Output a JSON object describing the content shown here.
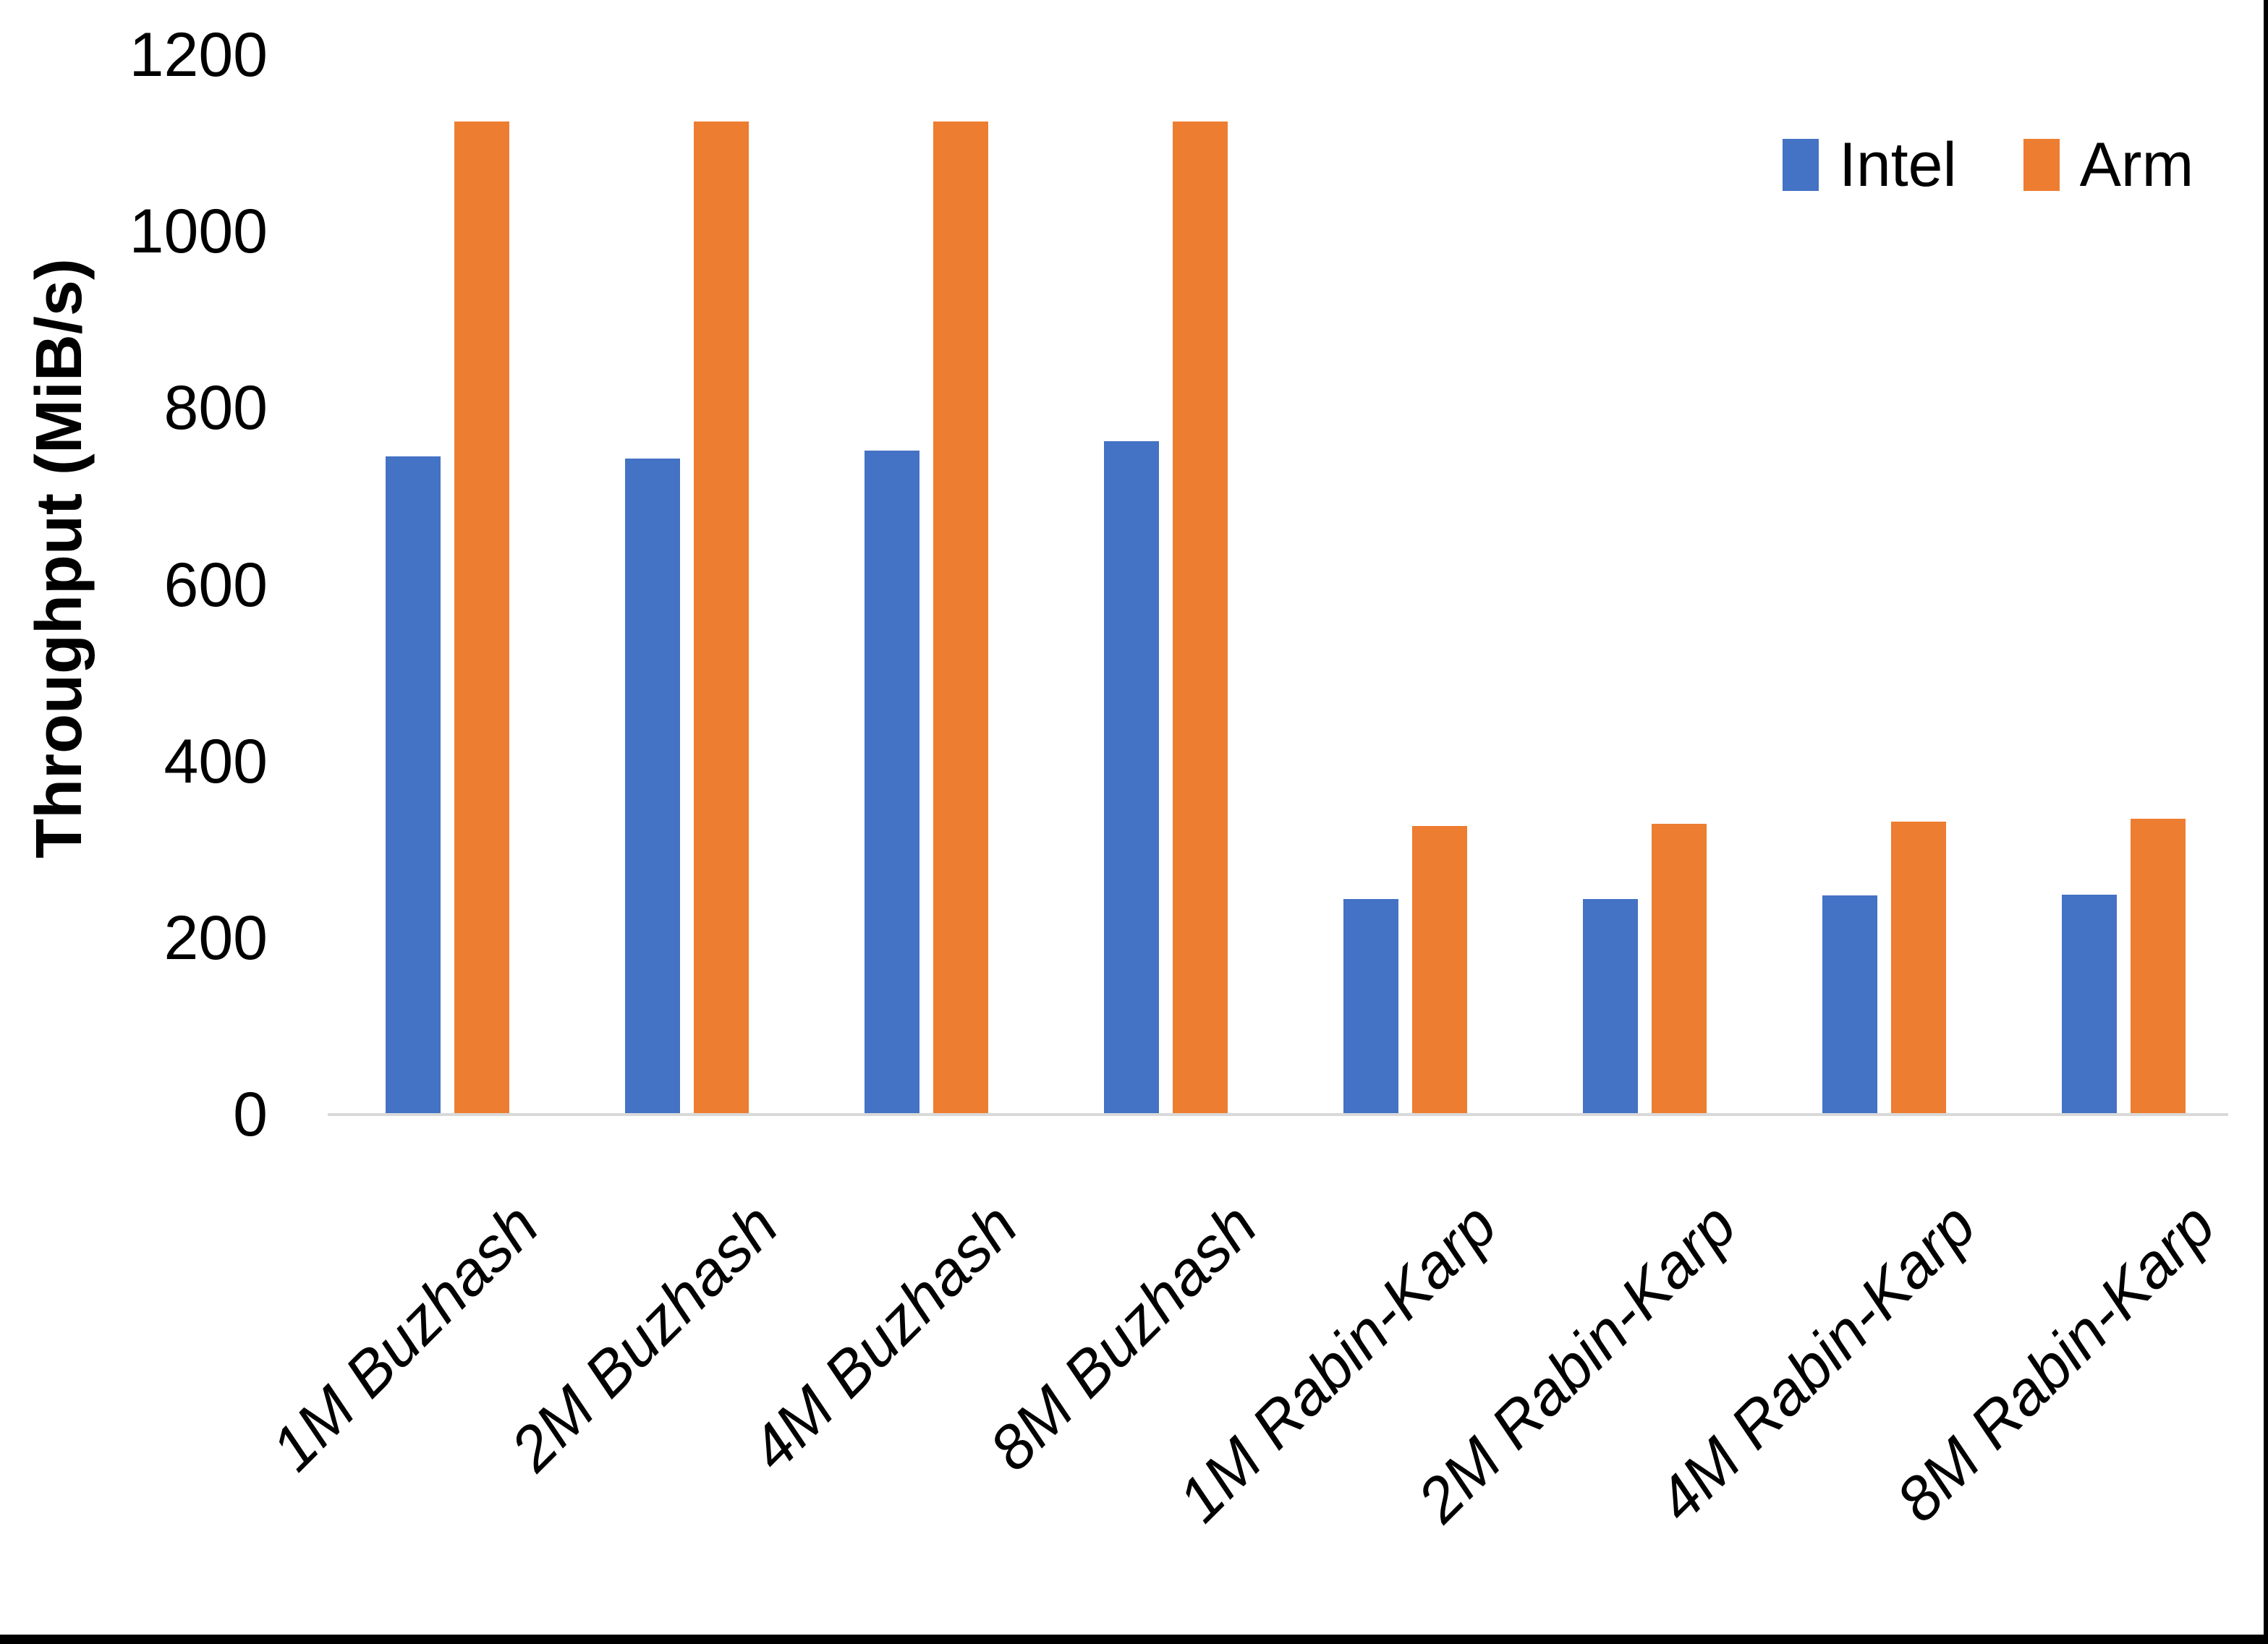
{
  "chart_data": {
    "type": "bar",
    "title": "",
    "ylabel": "Throughput (MiB/s)",
    "xlabel": "",
    "ylim": [
      0,
      1200
    ],
    "yticks": [
      0,
      200,
      400,
      600,
      800,
      1000,
      1200
    ],
    "grid": false,
    "legend_position": "top-right",
    "axis_line_color": "#D9D9D9",
    "categories": [
      "1M Buzhash",
      "2M Buzhash",
      "4M Buzhash",
      "8M Buzhash",
      "1M Rabin-Karp",
      "2M Rabin-Karp",
      "4M Rabin-Karp",
      "8M Rabin-Karp"
    ],
    "series": [
      {
        "name": "Intel",
        "color": "#4472C4",
        "values": [
          745,
          743,
          752,
          763,
          244,
          244,
          248,
          249
        ]
      },
      {
        "name": "Arm",
        "color": "#ED7D31",
        "values": [
          1125,
          1125,
          1125,
          1125,
          327,
          329,
          332,
          335
        ]
      }
    ]
  },
  "frame": {
    "edge_color": "#000000"
  }
}
